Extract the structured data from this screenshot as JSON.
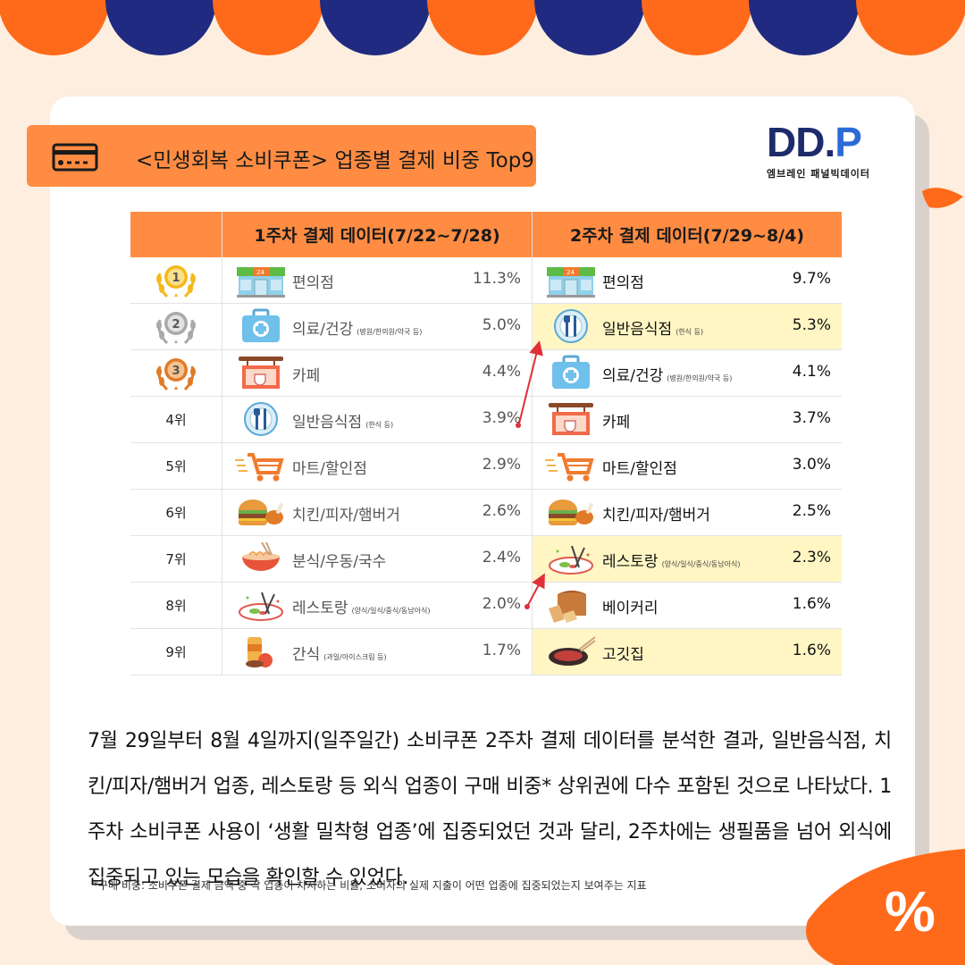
{
  "title": "<민생회복 소비쿠폰> 업종별 결제 비중 Top9",
  "logo": {
    "mark": "DD.",
    "mark_p": "P",
    "subtitle": "엠브레인 패널빅데이터"
  },
  "table": {
    "header_week1": "1주차 결제 데이터(7/22~7/28)",
    "header_week2": "2주차 결제 데이터(7/29~8/4)",
    "rows": [
      {
        "rank": "1",
        "w1": {
          "icon": "convenience-store-icon",
          "name": "편의점",
          "note": "",
          "pct": "11.3%"
        },
        "w2": {
          "icon": "convenience-store-icon",
          "name": "편의점",
          "note": "",
          "pct": "9.7%"
        }
      },
      {
        "rank": "2",
        "w1": {
          "icon": "medical-kit-icon",
          "name": "의료/건강",
          "note": "(병원/한의원/약국 등)",
          "pct": "5.0%"
        },
        "w2": {
          "icon": "plate-cutlery-icon",
          "name": "일반음식점",
          "note": "(한식 등)",
          "pct": "5.3%"
        }
      },
      {
        "rank": "3",
        "w1": {
          "icon": "cafe-sign-icon",
          "name": "카페",
          "note": "",
          "pct": "4.4%"
        },
        "w2": {
          "icon": "medical-kit-icon",
          "name": "의료/건강",
          "note": "(병원/한의원/약국 등)",
          "pct": "4.1%"
        }
      },
      {
        "rank": "4위",
        "w1": {
          "icon": "plate-cutlery-icon",
          "name": "일반음식점",
          "note": "(한식 등)",
          "pct": "3.9%"
        },
        "w2": {
          "icon": "cafe-sign-icon",
          "name": "카페",
          "note": "",
          "pct": "3.7%"
        }
      },
      {
        "rank": "5위",
        "w1": {
          "icon": "shopping-cart-icon",
          "name": "마트/할인점",
          "note": "",
          "pct": "2.9%"
        },
        "w2": {
          "icon": "shopping-cart-icon",
          "name": "마트/할인점",
          "note": "",
          "pct": "3.0%"
        }
      },
      {
        "rank": "6위",
        "w1": {
          "icon": "burger-chicken-icon",
          "name": "치킨/피자/햄버거",
          "note": "",
          "pct": "2.6%"
        },
        "w2": {
          "icon": "burger-chicken-icon",
          "name": "치킨/피자/햄버거",
          "note": "",
          "pct": "2.5%"
        }
      },
      {
        "rank": "7위",
        "w1": {
          "icon": "noodle-bowl-icon",
          "name": "분식/우동/국수",
          "note": "",
          "pct": "2.4%"
        },
        "w2": {
          "icon": "restaurant-dish-icon",
          "name": "레스토랑",
          "note": "(양식/일식/중식/동남아식)",
          "pct": "2.3%"
        }
      },
      {
        "rank": "8위",
        "w1": {
          "icon": "restaurant-dish-icon",
          "name": "레스토랑",
          "note": "(양식/일식/중식/동남아식)",
          "pct": "2.0%"
        },
        "w2": {
          "icon": "bread-icon",
          "name": "베이커리",
          "note": "",
          "pct": "1.6%"
        }
      },
      {
        "rank": "9위",
        "w1": {
          "icon": "snack-icon",
          "name": "간식",
          "note": "(과일/아이스크림 등)",
          "pct": "1.7%"
        },
        "w2": {
          "icon": "grilled-meat-icon",
          "name": "고깃집",
          "note": "",
          "pct": "1.6%"
        }
      }
    ],
    "highlighted_week2_rows": [
      1,
      6,
      8
    ]
  },
  "body": "7월 29일부터 8월 4일까지(일주일간) 소비쿠폰 2주차 결제 데이터를 분석한 결과, 일반음식점, 치킨/피자/햄버거 업종, 레스토랑 등 외식 업종이 구매 비중* 상위권에 다수 포함된 것으로 나타났다. 1주차 소비쿠폰 사용이 ‘생활 밀착형 업종’에 집중되었던 것과 달리, 2주차에는 생필품을 넘어 외식에 집중되고 있는 모습을 확인할 수 있었다.",
  "footnote": "*구매 비중: 소비쿠폰 결제 금액 중 각 업종이 차지하는 비율, 소비자의 실제 지출이 어떤 업종에 집중되었는지 보여주는 지표",
  "decoration": {
    "percent_sign": "%"
  },
  "colors": {
    "accent_orange": "#ff8c42",
    "navy": "#1f2a80",
    "highlight": "#fff6c4",
    "arrow": "#e0303a"
  }
}
